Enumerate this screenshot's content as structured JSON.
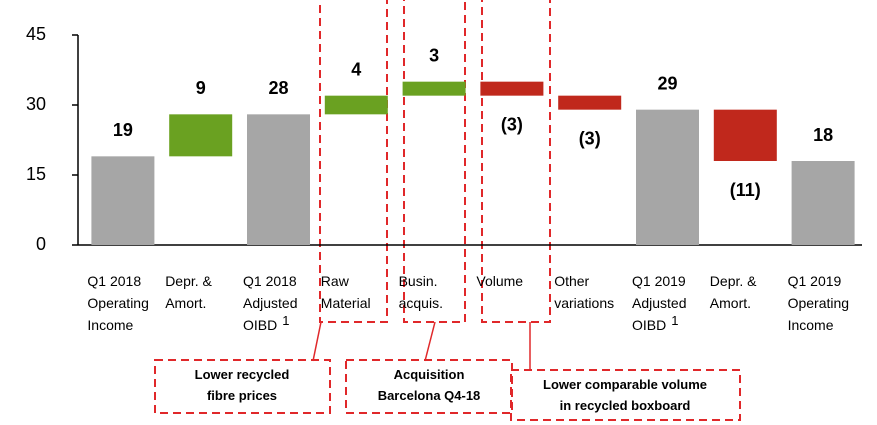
{
  "chart_data": {
    "type": "waterfall",
    "categories": [
      [
        "Q1 2018",
        "Operating",
        "Income"
      ],
      [
        "Depr. &",
        "Amort."
      ],
      [
        "Q1 2018",
        "Adjusted",
        "OIBD"
      ],
      [
        "Raw",
        "Material"
      ],
      [
        "Busin.",
        "acquis."
      ],
      [
        "Volume"
      ],
      [
        "Other",
        "variations"
      ],
      [
        "Q1 2019",
        "Adjusted",
        "OIBD"
      ],
      [
        "Depr. &",
        "Amort."
      ],
      [
        "Q1 2019",
        "Operating",
        "Income"
      ]
    ],
    "category_notes": {
      "2": "1",
      "7": "1"
    },
    "values": [
      19,
      9,
      28,
      4,
      3,
      -3,
      -3,
      29,
      -11,
      18
    ],
    "value_labels": [
      "19",
      "9",
      "28",
      "4",
      "3",
      "(3)",
      "(3)",
      "29",
      "(11)",
      "18"
    ],
    "measures": [
      "absolute",
      "relative",
      "absolute",
      "relative",
      "relative",
      "relative",
      "relative",
      "absolute",
      "relative",
      "absolute"
    ],
    "colors": {
      "absolute": "#a6a6a6",
      "increase": "#6aa121",
      "decrease": "#c0281c"
    },
    "ylim": [
      0,
      45
    ],
    "yticks": [
      0,
      15,
      30,
      45
    ],
    "annotations": [
      [
        "Lower recycled",
        "fibre prices"
      ],
      [
        "Acquisition",
        "Barcelona Q4-18"
      ],
      [
        "Lower comparable volume",
        "in recycled boxboard"
      ]
    ]
  }
}
